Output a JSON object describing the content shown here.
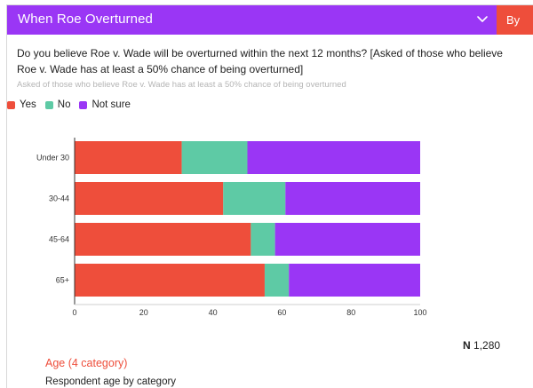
{
  "header": {
    "title": "When Roe Overturned",
    "byline": "By"
  },
  "question": "Do you believe Roe v. Wade will be overturned within the next 12 months? [Asked of those who believe Roe v. Wade has at least a 50% chance of being overturned]",
  "subquestion": "Asked of those who believe Roe v. Wade has at least a 50% chance of being overturned",
  "legend": [
    {
      "label": "Yes",
      "color": "#ee4e3b"
    },
    {
      "label": "No",
      "color": "#5ecaa5"
    },
    {
      "label": "Not sure",
      "color": "#9a36f5"
    }
  ],
  "chart_data": {
    "type": "bar",
    "orientation": "horizontal",
    "stacked": true,
    "categories": [
      "Under 30",
      "30-44",
      "45-64",
      "65+"
    ],
    "series": [
      {
        "name": "Yes",
        "color": "#ee4e3b",
        "values": [
          31,
          43,
          51,
          55
        ]
      },
      {
        "name": "No",
        "color": "#5ecaa5",
        "values": [
          19,
          18,
          7,
          7
        ]
      },
      {
        "name": "Not sure",
        "color": "#9a36f5",
        "values": [
          50,
          39,
          42,
          38
        ]
      }
    ],
    "xlim": [
      0,
      100
    ],
    "xticks": [
      0,
      20,
      40,
      60,
      80,
      100
    ],
    "legend_position": "top-left",
    "grid": false
  },
  "footer": {
    "n_label": "N",
    "n_value": "1,280",
    "variable_name": "Age (4 category)",
    "variable_desc": "Respondent age by category"
  }
}
